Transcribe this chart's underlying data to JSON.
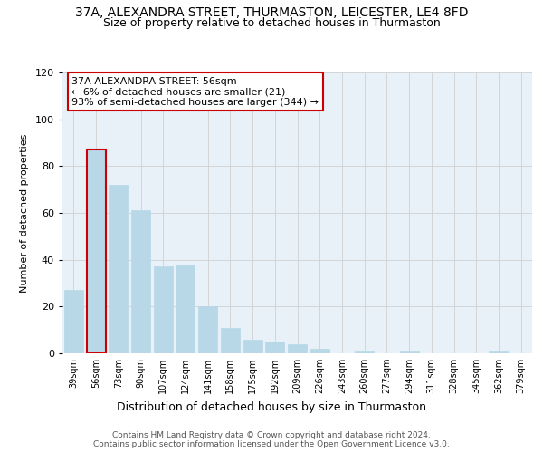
{
  "title": "37A, ALEXANDRA STREET, THURMASTON, LEICESTER, LE4 8FD",
  "subtitle": "Size of property relative to detached houses in Thurmaston",
  "xlabel": "Distribution of detached houses by size in Thurmaston",
  "ylabel": "Number of detached properties",
  "bar_labels": [
    "39sqm",
    "56sqm",
    "73sqm",
    "90sqm",
    "107sqm",
    "124sqm",
    "141sqm",
    "158sqm",
    "175sqm",
    "192sqm",
    "209sqm",
    "226sqm",
    "243sqm",
    "260sqm",
    "277sqm",
    "294sqm",
    "311sqm",
    "328sqm",
    "345sqm",
    "362sqm",
    "379sqm"
  ],
  "bar_values": [
    27,
    87,
    72,
    61,
    37,
    38,
    20,
    11,
    6,
    5,
    4,
    2,
    0,
    1,
    0,
    1,
    0,
    0,
    0,
    1,
    0
  ],
  "bar_color": "#b8d8e8",
  "highlight_bar_index": 1,
  "highlight_edge_color": "#cc0000",
  "ylim": [
    0,
    120
  ],
  "yticks": [
    0,
    20,
    40,
    60,
    80,
    100,
    120
  ],
  "annotation_line1": "37A ALEXANDRA STREET: 56sqm",
  "annotation_line2": "← 6% of detached houses are smaller (21)",
  "annotation_line3": "93% of semi-detached houses are larger (344) →",
  "footer_line1": "Contains HM Land Registry data © Crown copyright and database right 2024.",
  "footer_line2": "Contains public sector information licensed under the Open Government Licence v3.0.",
  "background_color": "#ffffff",
  "grid_color": "#d0d0d0",
  "plot_bg_color": "#e8f0f8"
}
